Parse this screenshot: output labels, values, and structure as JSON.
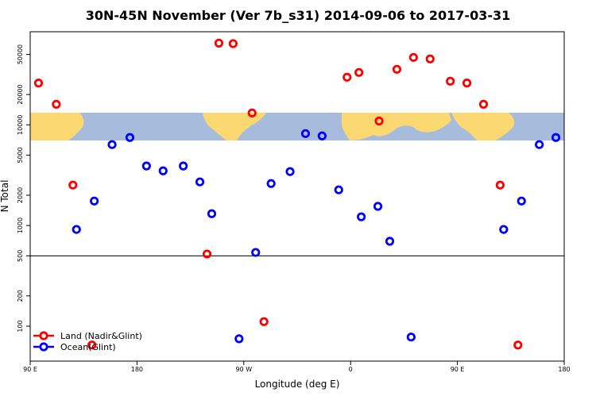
{
  "chart_data": {
    "type": "scatter",
    "title": "30N-45N November (Ver 7b_s31)   2014-09-06 to 2017-03-31",
    "x_label": "Longitude (deg E)",
    "y_label": "N Total",
    "xlim": [
      90,
      540
    ],
    "xticks": [
      {
        "value": 90,
        "label": "90 E"
      },
      180,
      {
        "value": 270,
        "label": "90 W"
      },
      {
        "value": 360,
        "label": "0"
      },
      {
        "value": 450,
        "label": "90 E"
      },
      {
        "value": 540,
        "label": "180"
      }
    ],
    "ylim": [
      45,
      84000
    ],
    "yticks": [
      100,
      200,
      500,
      1000,
      2000,
      5000,
      10000,
      20000,
      50000
    ],
    "log_y": true,
    "grid": false,
    "reference_line": 500,
    "legend_position": "bottomleft",
    "series": [
      {
        "name": "Land (Nadir&Glint)",
        "color": "#ff0000",
        "x": [
          97,
          112,
          126,
          142,
          239,
          249,
          261,
          277,
          287,
          357,
          367,
          384,
          399,
          413,
          427,
          444,
          458,
          472,
          486,
          501
        ],
        "values": [
          26000,
          16000,
          2520,
          65,
          521,
          64700,
          64000,
          13100,
          111,
          29700,
          33100,
          10900,
          35600,
          46700,
          45100,
          27100,
          26000,
          16000,
          2520,
          65
        ]
      },
      {
        "name": "Ocean(Glint)",
        "color": "#0000ff",
        "x": [
          129,
          144,
          159,
          174,
          188,
          202,
          219,
          233,
          243,
          266,
          280,
          293,
          309,
          322,
          336,
          350,
          369,
          383,
          393,
          411,
          489,
          504,
          519,
          533
        ],
        "values": [
          914,
          1750,
          6360,
          7480,
          3900,
          3490,
          3900,
          2710,
          1310,
          75,
          540,
          2610,
          3430,
          8180,
          7760,
          2260,
          1220,
          1550,
          697,
          78,
          914,
          1750,
          6360,
          7480
        ]
      }
    ]
  }
}
